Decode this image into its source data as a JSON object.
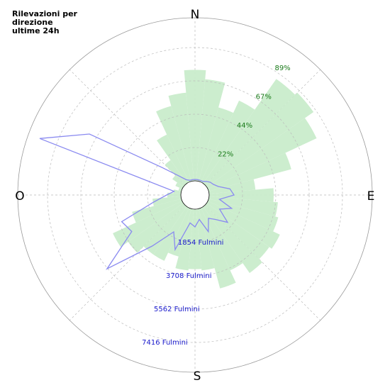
{
  "chart_data": {
    "type": "polar",
    "title": [
      "Rilevazioni per",
      "direzione",
      "ultime 24h"
    ],
    "compass": [
      "N",
      "E",
      "S",
      "O"
    ],
    "theta": [
      0,
      10,
      20,
      30,
      40,
      50,
      60,
      70,
      80,
      90,
      100,
      110,
      120,
      130,
      140,
      150,
      160,
      170,
      180,
      190,
      200,
      210,
      220,
      230,
      240,
      250,
      260,
      270,
      280,
      290,
      300,
      310,
      320,
      330,
      340,
      350
    ],
    "series": [
      {
        "type": "bar",
        "color": "#c9eccb",
        "values": [
          74,
          68,
          51,
          60,
          85,
          87,
          80,
          57,
          31,
          43,
          46,
          48,
          53,
          51,
          54,
          46,
          55,
          41,
          40,
          41,
          33,
          39,
          39,
          45,
          51,
          34,
          19,
          9,
          5,
          2,
          5,
          9,
          19,
          35,
          52,
          59
        ]
      },
      {
        "type": "line",
        "axis": "r2",
        "color": "#8a8af0",
        "values": [
          79,
          79,
          79,
          79,
          197,
          316,
          394,
          592,
          1183,
          1381,
          592,
          1381,
          789,
          1578,
          986,
          710,
          1381,
          592,
          986,
          789,
          2446,
          1578,
          2919,
          5601,
          3274,
          3550,
          1578,
          789,
          394,
          8402,
          5996,
          1578,
          592,
          197,
          79,
          79
        ]
      }
    ],
    "rlim": [
      0,
      111.1
    ],
    "rticks": [
      {
        "value": 22.22,
        "label": "22%"
      },
      {
        "value": 44.44,
        "label": "44%"
      },
      {
        "value": 66.67,
        "label": "67%"
      },
      {
        "value": 88.89,
        "label": "89%"
      }
    ],
    "r2lim": [
      0,
      9270
    ],
    "r2ticks": [
      {
        "value": 1854,
        "label": "1854 Fulmini"
      },
      {
        "value": 3708,
        "label": "3708 Fulmini"
      },
      {
        "value": 5562,
        "label": "5562 Fulmini"
      },
      {
        "value": 7416,
        "label": "7416 Fulmini"
      }
    ],
    "grid": true
  }
}
